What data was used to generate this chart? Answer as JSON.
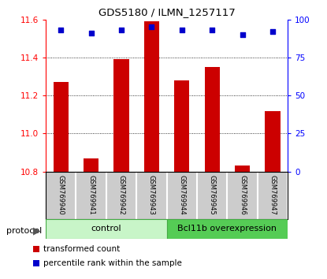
{
  "title": "GDS5180 / ILMN_1257117",
  "samples": [
    "GSM769940",
    "GSM769941",
    "GSM769942",
    "GSM769943",
    "GSM769944",
    "GSM769945",
    "GSM769946",
    "GSM769947"
  ],
  "bar_values": [
    11.27,
    10.87,
    11.39,
    11.59,
    11.28,
    11.35,
    10.83,
    11.12
  ],
  "percentile_values": [
    93,
    91,
    93,
    95,
    93,
    93,
    90,
    92
  ],
  "ylim_left": [
    10.8,
    11.6
  ],
  "ylim_right": [
    0,
    100
  ],
  "yticks_left": [
    10.8,
    11.0,
    11.2,
    11.4,
    11.6
  ],
  "yticks_right": [
    0,
    25,
    50,
    75,
    100
  ],
  "bar_color": "#cc0000",
  "dot_color": "#0000cc",
  "group_labels": [
    "control",
    "Bcl11b overexpression"
  ],
  "ctrl_color": "#c8f5c8",
  "overexp_color": "#55cc55",
  "legend_items": [
    "transformed count",
    "percentile rank within the sample"
  ],
  "legend_colors": [
    "#cc0000",
    "#0000cc"
  ],
  "bg_color": "#ffffff",
  "protocol_label": "protocol"
}
